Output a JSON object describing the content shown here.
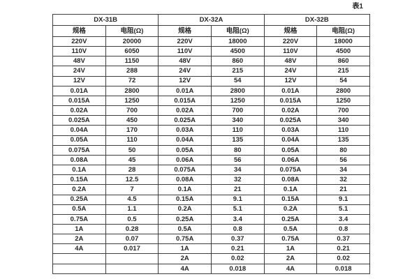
{
  "caption": "表1",
  "table": {
    "groups": [
      {
        "title": "DX-31B"
      },
      {
        "title": "DX-32A"
      },
      {
        "title": "DX-32B"
      }
    ],
    "column_headers": {
      "spec": "规格",
      "resistance": "电阻(Ω)"
    },
    "rows": [
      [
        "220V",
        "20000",
        "220V",
        "18000",
        "220V",
        "18000"
      ],
      [
        "110V",
        "6050",
        "110V",
        "4500",
        "110V",
        "4500"
      ],
      [
        "48V",
        "1150",
        "48V",
        "860",
        "48V",
        "860"
      ],
      [
        "24V",
        "288",
        "24V",
        "215",
        "24V",
        "215"
      ],
      [
        "12V",
        "72",
        "12V",
        "54",
        "12V",
        "54"
      ],
      [
        "0.01A",
        "2800",
        "0.01A",
        "2800",
        "0.01A",
        "2800"
      ],
      [
        "0.015A",
        "1250",
        "0.015A",
        "1250",
        "0.015A",
        "1250"
      ],
      [
        "0.02A",
        "700",
        "0.02A",
        "700",
        "0.02A",
        "700"
      ],
      [
        "0.025A",
        "450",
        "0.025A",
        "340",
        "0.025A",
        "340"
      ],
      [
        "0.04A",
        "170",
        "0.03A",
        "110",
        "0.03A",
        "110"
      ],
      [
        "0.05A",
        "110",
        "0.04A",
        "135",
        "0.04A",
        "135"
      ],
      [
        "0.075A",
        "50",
        "0.05A",
        "80",
        "0.05A",
        "80"
      ],
      [
        "0.08A",
        "45",
        "0.06A",
        "56",
        "0.06A",
        "56"
      ],
      [
        "0.1A",
        "28",
        "0.075A",
        "34",
        "0.075A",
        "34"
      ],
      [
        "0.15A",
        "12.5",
        "0.08A",
        "32",
        "0.08A",
        "32"
      ],
      [
        "0.2A",
        "7",
        "0.1A",
        "21",
        "0.1A",
        "21"
      ],
      [
        "0.25A",
        "4.5",
        "0.15A",
        "9.1",
        "0.15A",
        "9.1"
      ],
      [
        "0.5A",
        "1.1",
        "0.2A",
        "5.1",
        "0.2A",
        "5.1"
      ],
      [
        "0.75A",
        "0.5",
        "0.25A",
        "3.4",
        "0.25A",
        "3.4"
      ],
      [
        "1A",
        "0.28",
        "0.5A",
        "0.8",
        "0.5A",
        "0.8"
      ],
      [
        "2A",
        "0.07",
        "0.75A",
        "0.37",
        "0.75A",
        "0.37"
      ],
      [
        "4A",
        "0.017",
        "1A",
        "0.21",
        "1A",
        "0.21"
      ],
      [
        "",
        "",
        "2A",
        "0.02",
        "2A",
        "0.02"
      ],
      [
        "",
        "",
        "4A",
        "0.018",
        "4A",
        "0.018"
      ]
    ]
  }
}
